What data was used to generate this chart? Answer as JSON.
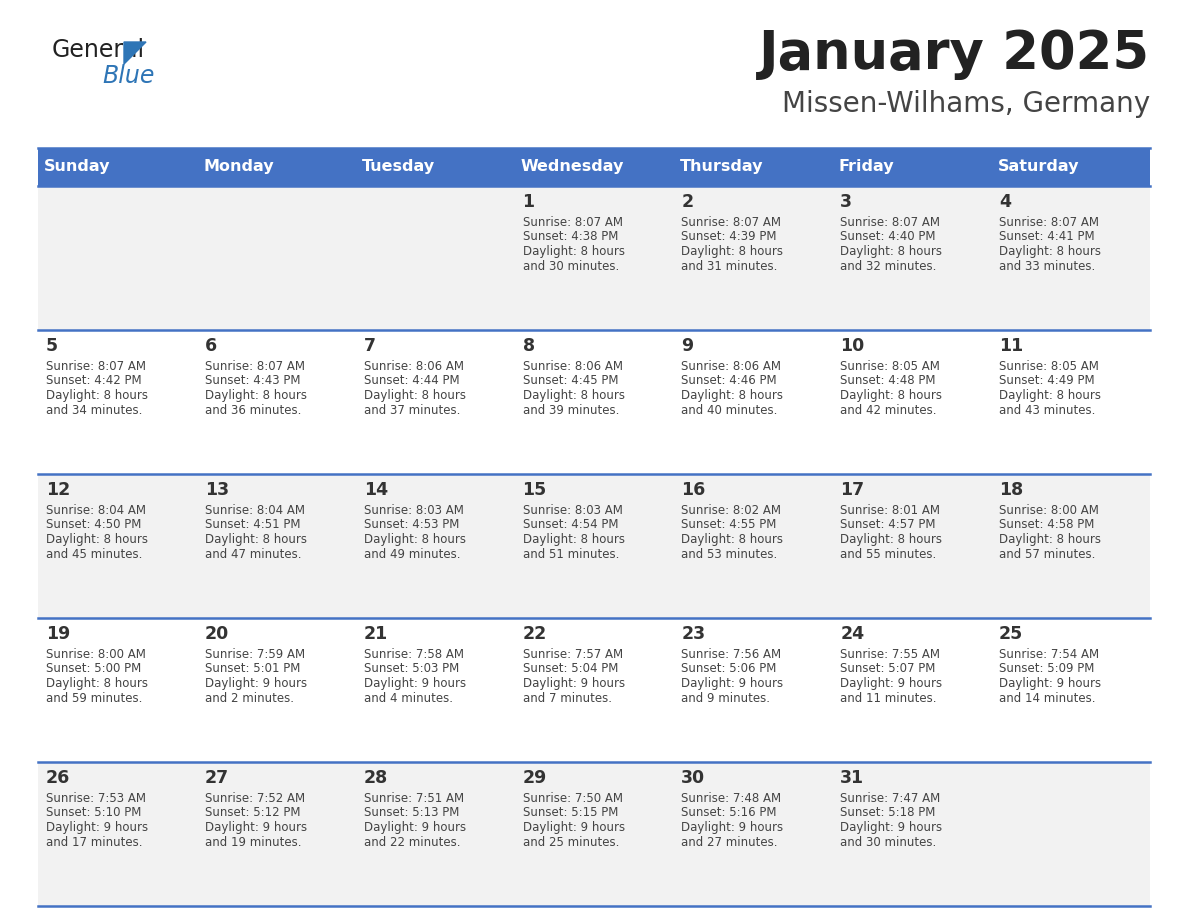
{
  "title": "January 2025",
  "subtitle": "Missen-Wilhams, Germany",
  "days_of_week": [
    "Sunday",
    "Monday",
    "Tuesday",
    "Wednesday",
    "Thursday",
    "Friday",
    "Saturday"
  ],
  "header_bg": "#4472C4",
  "header_text": "#FFFFFF",
  "row_bg_light": "#FFFFFF",
  "row_bg_dark": "#F2F2F2",
  "separator_color": "#4472C4",
  "day_num_color": "#333333",
  "cell_text_color": "#444444",
  "title_color": "#222222",
  "subtitle_color": "#444444",
  "logo_general_color": "#222222",
  "logo_blue_color": "#2E75B6",
  "calendar_data": [
    [
      {
        "day": "",
        "sunrise": "",
        "sunset": "",
        "daylight": ""
      },
      {
        "day": "",
        "sunrise": "",
        "sunset": "",
        "daylight": ""
      },
      {
        "day": "",
        "sunrise": "",
        "sunset": "",
        "daylight": ""
      },
      {
        "day": "1",
        "sunrise": "8:07 AM",
        "sunset": "4:38 PM",
        "daylight": "8 hours and 30 minutes."
      },
      {
        "day": "2",
        "sunrise": "8:07 AM",
        "sunset": "4:39 PM",
        "daylight": "8 hours and 31 minutes."
      },
      {
        "day": "3",
        "sunrise": "8:07 AM",
        "sunset": "4:40 PM",
        "daylight": "8 hours and 32 minutes."
      },
      {
        "day": "4",
        "sunrise": "8:07 AM",
        "sunset": "4:41 PM",
        "daylight": "8 hours and 33 minutes."
      }
    ],
    [
      {
        "day": "5",
        "sunrise": "8:07 AM",
        "sunset": "4:42 PM",
        "daylight": "8 hours and 34 minutes."
      },
      {
        "day": "6",
        "sunrise": "8:07 AM",
        "sunset": "4:43 PM",
        "daylight": "8 hours and 36 minutes."
      },
      {
        "day": "7",
        "sunrise": "8:06 AM",
        "sunset": "4:44 PM",
        "daylight": "8 hours and 37 minutes."
      },
      {
        "day": "8",
        "sunrise": "8:06 AM",
        "sunset": "4:45 PM",
        "daylight": "8 hours and 39 minutes."
      },
      {
        "day": "9",
        "sunrise": "8:06 AM",
        "sunset": "4:46 PM",
        "daylight": "8 hours and 40 minutes."
      },
      {
        "day": "10",
        "sunrise": "8:05 AM",
        "sunset": "4:48 PM",
        "daylight": "8 hours and 42 minutes."
      },
      {
        "day": "11",
        "sunrise": "8:05 AM",
        "sunset": "4:49 PM",
        "daylight": "8 hours and 43 minutes."
      }
    ],
    [
      {
        "day": "12",
        "sunrise": "8:04 AM",
        "sunset": "4:50 PM",
        "daylight": "8 hours and 45 minutes."
      },
      {
        "day": "13",
        "sunrise": "8:04 AM",
        "sunset": "4:51 PM",
        "daylight": "8 hours and 47 minutes."
      },
      {
        "day": "14",
        "sunrise": "8:03 AM",
        "sunset": "4:53 PM",
        "daylight": "8 hours and 49 minutes."
      },
      {
        "day": "15",
        "sunrise": "8:03 AM",
        "sunset": "4:54 PM",
        "daylight": "8 hours and 51 minutes."
      },
      {
        "day": "16",
        "sunrise": "8:02 AM",
        "sunset": "4:55 PM",
        "daylight": "8 hours and 53 minutes."
      },
      {
        "day": "17",
        "sunrise": "8:01 AM",
        "sunset": "4:57 PM",
        "daylight": "8 hours and 55 minutes."
      },
      {
        "day": "18",
        "sunrise": "8:00 AM",
        "sunset": "4:58 PM",
        "daylight": "8 hours and 57 minutes."
      }
    ],
    [
      {
        "day": "19",
        "sunrise": "8:00 AM",
        "sunset": "5:00 PM",
        "daylight": "8 hours and 59 minutes."
      },
      {
        "day": "20",
        "sunrise": "7:59 AM",
        "sunset": "5:01 PM",
        "daylight": "9 hours and 2 minutes."
      },
      {
        "day": "21",
        "sunrise": "7:58 AM",
        "sunset": "5:03 PM",
        "daylight": "9 hours and 4 minutes."
      },
      {
        "day": "22",
        "sunrise": "7:57 AM",
        "sunset": "5:04 PM",
        "daylight": "9 hours and 7 minutes."
      },
      {
        "day": "23",
        "sunrise": "7:56 AM",
        "sunset": "5:06 PM",
        "daylight": "9 hours and 9 minutes."
      },
      {
        "day": "24",
        "sunrise": "7:55 AM",
        "sunset": "5:07 PM",
        "daylight": "9 hours and 11 minutes."
      },
      {
        "day": "25",
        "sunrise": "7:54 AM",
        "sunset": "5:09 PM",
        "daylight": "9 hours and 14 minutes."
      }
    ],
    [
      {
        "day": "26",
        "sunrise": "7:53 AM",
        "sunset": "5:10 PM",
        "daylight": "9 hours and 17 minutes."
      },
      {
        "day": "27",
        "sunrise": "7:52 AM",
        "sunset": "5:12 PM",
        "daylight": "9 hours and 19 minutes."
      },
      {
        "day": "28",
        "sunrise": "7:51 AM",
        "sunset": "5:13 PM",
        "daylight": "9 hours and 22 minutes."
      },
      {
        "day": "29",
        "sunrise": "7:50 AM",
        "sunset": "5:15 PM",
        "daylight": "9 hours and 25 minutes."
      },
      {
        "day": "30",
        "sunrise": "7:48 AM",
        "sunset": "5:16 PM",
        "daylight": "9 hours and 27 minutes."
      },
      {
        "day": "31",
        "sunrise": "7:47 AM",
        "sunset": "5:18 PM",
        "daylight": "9 hours and 30 minutes."
      },
      {
        "day": "",
        "sunrise": "",
        "sunset": "",
        "daylight": ""
      }
    ]
  ]
}
